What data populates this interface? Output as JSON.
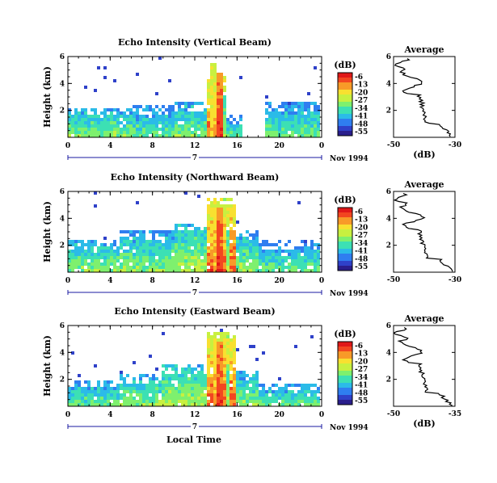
{
  "figure": {
    "bottom_label": "Local Time",
    "date_label": "Nov 1994",
    "colors": {
      "colormap": [
        "#2a1e8c",
        "#2f41c9",
        "#2f7ef0",
        "#2bbbe8",
        "#3ce0b4",
        "#7ef06e",
        "#c8f040",
        "#f8e030",
        "#f89a28",
        "#f24620",
        "#e01818"
      ]
    }
  },
  "chart_data": [
    {
      "type": "heatmap",
      "title": "Echo Intensity (Vertical Beam)",
      "ylabel": "Height (km)",
      "ylim": [
        0,
        6
      ],
      "yticks": [
        "2",
        "4",
        "6"
      ],
      "xlim": [
        0,
        24
      ],
      "xticks": [
        "0",
        "4",
        "8",
        "12",
        "16",
        "20",
        "0"
      ],
      "day_label": "7",
      "colorbar": {
        "label": "(dB)",
        "ticks": [
          "-6",
          "-13",
          "-20",
          "-27",
          "-34",
          "-41",
          "-48",
          "-55"
        ]
      },
      "bands": [
        {
          "start": 0,
          "end": 6,
          "top": 2.2,
          "level": 0.25
        },
        {
          "start": 6,
          "end": 10,
          "top": 2.3,
          "level": 0.2
        },
        {
          "start": 10,
          "end": 13,
          "top": 2.6,
          "level": 0.25
        },
        {
          "start": 13,
          "end": 15,
          "top": 4.6,
          "level": 0.6
        },
        {
          "start": 15,
          "end": 16.5,
          "top": 1.6,
          "level": 0.2
        },
        {
          "start": 18.5,
          "end": 24,
          "top": 2.6,
          "level": 0.2
        }
      ],
      "columns": [
        {
          "hour": 13.8,
          "width": 0.5,
          "top": 5.4,
          "level": 0.75
        },
        {
          "hour": 14.3,
          "width": 0.6,
          "top": 4.8,
          "level": 0.95
        },
        {
          "hour": 14.9,
          "width": 0.3,
          "top": 3.0,
          "level": 0.55
        }
      ],
      "average": {
        "xlabel": "(dB)",
        "xlim": [
          -50,
          -30
        ],
        "xticks": [
          "-50",
          "-30"
        ],
        "yticks": [
          "2",
          "4",
          "6"
        ]
      }
    },
    {
      "type": "heatmap",
      "title": "Echo Intensity (Northward Beam)",
      "ylabel": "Height (km)",
      "ylim": [
        0,
        6
      ],
      "yticks": [
        "2",
        "4",
        "6"
      ],
      "xlim": [
        0,
        24
      ],
      "xticks": [
        "0",
        "4",
        "8",
        "12",
        "16",
        "20",
        "0"
      ],
      "day_label": "7",
      "colorbar": {
        "label": "(dB)",
        "ticks": [
          "-6",
          "-13",
          "-20",
          "-27",
          "-34",
          "-41",
          "-48",
          "-55"
        ]
      },
      "bands": [
        {
          "start": 0,
          "end": 5,
          "top": 2.4,
          "level": 0.25
        },
        {
          "start": 5,
          "end": 10,
          "top": 3.0,
          "level": 0.25
        },
        {
          "start": 10,
          "end": 13,
          "top": 3.6,
          "level": 0.3
        },
        {
          "start": 13,
          "end": 16,
          "top": 5.6,
          "level": 0.6
        },
        {
          "start": 16,
          "end": 18,
          "top": 3.0,
          "level": 0.25
        },
        {
          "start": 18,
          "end": 24,
          "top": 2.3,
          "level": 0.2
        }
      ],
      "columns": [
        {
          "hour": 14.0,
          "width": 0.5,
          "top": 5.5,
          "level": 0.8
        },
        {
          "hour": 14.5,
          "width": 0.6,
          "top": 4.8,
          "level": 0.95
        },
        {
          "hour": 15.2,
          "width": 0.3,
          "top": 3.2,
          "level": 0.55
        }
      ],
      "average": {
        "xlabel": "",
        "xlim": [
          -50,
          -30
        ],
        "xticks": [
          "-50",
          "-30"
        ],
        "yticks": [
          "2",
          "4",
          "6"
        ]
      }
    },
    {
      "type": "heatmap",
      "title": "Echo Intensity (Eastward Beam)",
      "ylabel": "Height (km)",
      "ylim": [
        0,
        6
      ],
      "yticks": [
        "2",
        "4",
        "6"
      ],
      "xlim": [
        0,
        24
      ],
      "xticks": [
        "0",
        "4",
        "8",
        "12",
        "16",
        "20",
        "0"
      ],
      "day_label": "7",
      "colorbar": {
        "label": "(dB)",
        "ticks": [
          "-6",
          "-13",
          "-20",
          "-27",
          "-34",
          "-41",
          "-48",
          "-55"
        ]
      },
      "bands": [
        {
          "start": 0,
          "end": 5,
          "top": 2.0,
          "level": 0.2
        },
        {
          "start": 5,
          "end": 9,
          "top": 2.4,
          "level": 0.25
        },
        {
          "start": 9,
          "end": 13,
          "top": 3.0,
          "level": 0.3
        },
        {
          "start": 13,
          "end": 16,
          "top": 5.6,
          "level": 0.6
        },
        {
          "start": 16,
          "end": 18,
          "top": 2.6,
          "level": 0.25
        },
        {
          "start": 18,
          "end": 24,
          "top": 1.8,
          "level": 0.2
        }
      ],
      "columns": [
        {
          "hour": 14.0,
          "width": 0.5,
          "top": 5.5,
          "level": 0.8
        },
        {
          "hour": 14.5,
          "width": 0.6,
          "top": 4.8,
          "level": 0.95
        },
        {
          "hour": 15.2,
          "width": 0.3,
          "top": 3.2,
          "level": 0.55
        }
      ],
      "average": {
        "xlabel": "(dB)",
        "xlim": [
          -50,
          -35
        ],
        "xticks": [
          "-50",
          "-35"
        ],
        "yticks": [
          "2",
          "4",
          "6"
        ]
      }
    }
  ]
}
